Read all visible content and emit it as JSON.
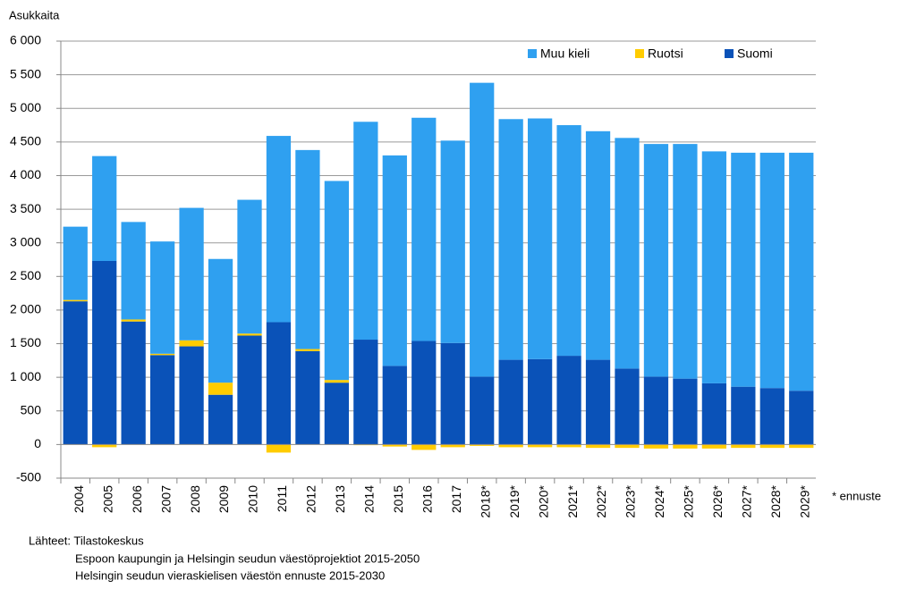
{
  "chart_data": {
    "type": "stacked_bar",
    "y_label": "Asukkaita",
    "categories": [
      "2004",
      "2005",
      "2006",
      "2007",
      "2008",
      "2009",
      "2010",
      "2011",
      "2012",
      "2013",
      "2014",
      "2015",
      "2016",
      "2017",
      "2018*",
      "2019*",
      "2020*",
      "2021*",
      "2022*",
      "2023*",
      "2024*",
      "2025*",
      "2026*",
      "2027*",
      "2028*",
      "2029*"
    ],
    "series": [
      {
        "name": "Suomi",
        "color": "#0a52b8",
        "values": [
          2130,
          2730,
          1830,
          1330,
          1460,
          740,
          1620,
          1820,
          1390,
          920,
          1560,
          1170,
          1540,
          1510,
          1010,
          1260,
          1270,
          1320,
          1260,
          1130,
          1010,
          980,
          910,
          860,
          840,
          800
        ]
      },
      {
        "name": "Ruotsi",
        "color": "#ffcc00",
        "values": [
          20,
          -40,
          30,
          20,
          90,
          180,
          30,
          -120,
          30,
          40,
          -10,
          -30,
          -80,
          -40,
          -20,
          -40,
          -40,
          -40,
          -50,
          -50,
          -60,
          -60,
          -60,
          -50,
          -50,
          -50
        ]
      },
      {
        "name": "Muu kieli",
        "color": "#2fa0f0",
        "values": [
          1090,
          1560,
          1450,
          1670,
          1970,
          1840,
          1990,
          2770,
          2960,
          2960,
          3240,
          3130,
          3320,
          3010,
          4370,
          3580,
          3580,
          3430,
          3400,
          3430,
          3460,
          3490,
          3450,
          3480,
          3500,
          3540
        ]
      }
    ],
    "legend_order": [
      "Muu kieli",
      "Ruotsi",
      "Suomi"
    ],
    "ylim": [
      -500,
      6000
    ],
    "yticks": [
      {
        "value": -500,
        "label": "-500"
      },
      0,
      500,
      {
        "value": 1000,
        "label": "1 000"
      },
      {
        "value": 1500,
        "label": "1 500"
      },
      {
        "value": 2000,
        "label": "2 000"
      },
      {
        "value": 2500,
        "label": "2 500"
      },
      {
        "value": 3000,
        "label": "3 000"
      },
      {
        "value": 3500,
        "label": "3 500"
      },
      {
        "value": 4000,
        "label": "4 000"
      },
      {
        "value": 4500,
        "label": "4 500"
      },
      {
        "value": 5000,
        "label": "5 000"
      },
      {
        "value": 5500,
        "label": "5 500"
      },
      {
        "value": 6000,
        "label": "6 000"
      }
    ],
    "grid": true,
    "annotation": "* ennuste",
    "sources": [
      "Lähteet: Tilastokeskus",
      "Espoon kaupungin ja Helsingin seudun väestöprojektiot 2015-2050",
      "Helsingin seudun vieraskielisen väestön ennuste 2015-2030"
    ]
  }
}
